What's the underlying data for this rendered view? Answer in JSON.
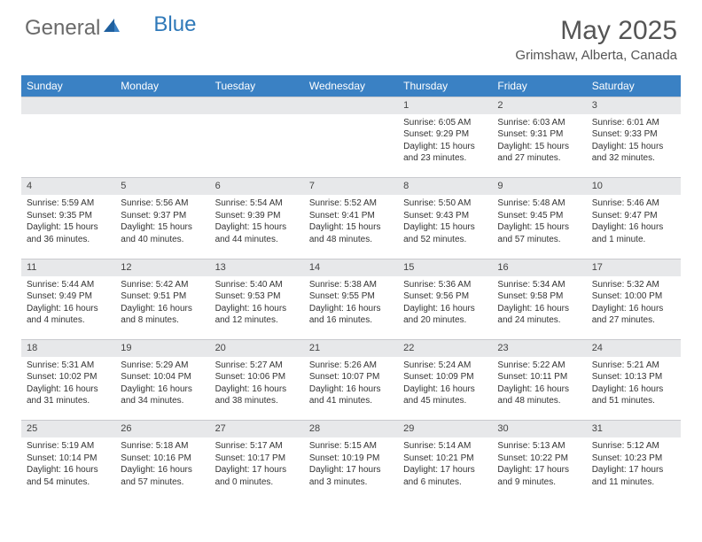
{
  "brand": {
    "part1": "General",
    "part2": "Blue"
  },
  "title": "May 2025",
  "location": "Grimshaw, Alberta, Canada",
  "colors": {
    "header_bg": "#3a81c4",
    "header_text": "#ffffff",
    "daynum_bg": "#e7e8ea",
    "text": "#333333",
    "brand_gray": "#6a6a6a",
    "brand_blue": "#2f79b9"
  },
  "daysOfWeek": [
    "Sunday",
    "Monday",
    "Tuesday",
    "Wednesday",
    "Thursday",
    "Friday",
    "Saturday"
  ],
  "weeks": [
    {
      "nums": [
        "",
        "",
        "",
        "",
        "1",
        "2",
        "3"
      ],
      "cells": [
        [
          "",
          "",
          "",
          ""
        ],
        [
          "",
          "",
          "",
          ""
        ],
        [
          "",
          "",
          "",
          ""
        ],
        [
          "",
          "",
          "",
          ""
        ],
        [
          "Sunrise: 6:05 AM",
          "Sunset: 9:29 PM",
          "Daylight: 15 hours",
          "and 23 minutes."
        ],
        [
          "Sunrise: 6:03 AM",
          "Sunset: 9:31 PM",
          "Daylight: 15 hours",
          "and 27 minutes."
        ],
        [
          "Sunrise: 6:01 AM",
          "Sunset: 9:33 PM",
          "Daylight: 15 hours",
          "and 32 minutes."
        ]
      ]
    },
    {
      "nums": [
        "4",
        "5",
        "6",
        "7",
        "8",
        "9",
        "10"
      ],
      "cells": [
        [
          "Sunrise: 5:59 AM",
          "Sunset: 9:35 PM",
          "Daylight: 15 hours",
          "and 36 minutes."
        ],
        [
          "Sunrise: 5:56 AM",
          "Sunset: 9:37 PM",
          "Daylight: 15 hours",
          "and 40 minutes."
        ],
        [
          "Sunrise: 5:54 AM",
          "Sunset: 9:39 PM",
          "Daylight: 15 hours",
          "and 44 minutes."
        ],
        [
          "Sunrise: 5:52 AM",
          "Sunset: 9:41 PM",
          "Daylight: 15 hours",
          "and 48 minutes."
        ],
        [
          "Sunrise: 5:50 AM",
          "Sunset: 9:43 PM",
          "Daylight: 15 hours",
          "and 52 minutes."
        ],
        [
          "Sunrise: 5:48 AM",
          "Sunset: 9:45 PM",
          "Daylight: 15 hours",
          "and 57 minutes."
        ],
        [
          "Sunrise: 5:46 AM",
          "Sunset: 9:47 PM",
          "Daylight: 16 hours",
          "and 1 minute."
        ]
      ]
    },
    {
      "nums": [
        "11",
        "12",
        "13",
        "14",
        "15",
        "16",
        "17"
      ],
      "cells": [
        [
          "Sunrise: 5:44 AM",
          "Sunset: 9:49 PM",
          "Daylight: 16 hours",
          "and 4 minutes."
        ],
        [
          "Sunrise: 5:42 AM",
          "Sunset: 9:51 PM",
          "Daylight: 16 hours",
          "and 8 minutes."
        ],
        [
          "Sunrise: 5:40 AM",
          "Sunset: 9:53 PM",
          "Daylight: 16 hours",
          "and 12 minutes."
        ],
        [
          "Sunrise: 5:38 AM",
          "Sunset: 9:55 PM",
          "Daylight: 16 hours",
          "and 16 minutes."
        ],
        [
          "Sunrise: 5:36 AM",
          "Sunset: 9:56 PM",
          "Daylight: 16 hours",
          "and 20 minutes."
        ],
        [
          "Sunrise: 5:34 AM",
          "Sunset: 9:58 PM",
          "Daylight: 16 hours",
          "and 24 minutes."
        ],
        [
          "Sunrise: 5:32 AM",
          "Sunset: 10:00 PM",
          "Daylight: 16 hours",
          "and 27 minutes."
        ]
      ]
    },
    {
      "nums": [
        "18",
        "19",
        "20",
        "21",
        "22",
        "23",
        "24"
      ],
      "cells": [
        [
          "Sunrise: 5:31 AM",
          "Sunset: 10:02 PM",
          "Daylight: 16 hours",
          "and 31 minutes."
        ],
        [
          "Sunrise: 5:29 AM",
          "Sunset: 10:04 PM",
          "Daylight: 16 hours",
          "and 34 minutes."
        ],
        [
          "Sunrise: 5:27 AM",
          "Sunset: 10:06 PM",
          "Daylight: 16 hours",
          "and 38 minutes."
        ],
        [
          "Sunrise: 5:26 AM",
          "Sunset: 10:07 PM",
          "Daylight: 16 hours",
          "and 41 minutes."
        ],
        [
          "Sunrise: 5:24 AM",
          "Sunset: 10:09 PM",
          "Daylight: 16 hours",
          "and 45 minutes."
        ],
        [
          "Sunrise: 5:22 AM",
          "Sunset: 10:11 PM",
          "Daylight: 16 hours",
          "and 48 minutes."
        ],
        [
          "Sunrise: 5:21 AM",
          "Sunset: 10:13 PM",
          "Daylight: 16 hours",
          "and 51 minutes."
        ]
      ]
    },
    {
      "nums": [
        "25",
        "26",
        "27",
        "28",
        "29",
        "30",
        "31"
      ],
      "cells": [
        [
          "Sunrise: 5:19 AM",
          "Sunset: 10:14 PM",
          "Daylight: 16 hours",
          "and 54 minutes."
        ],
        [
          "Sunrise: 5:18 AM",
          "Sunset: 10:16 PM",
          "Daylight: 16 hours",
          "and 57 minutes."
        ],
        [
          "Sunrise: 5:17 AM",
          "Sunset: 10:17 PM",
          "Daylight: 17 hours",
          "and 0 minutes."
        ],
        [
          "Sunrise: 5:15 AM",
          "Sunset: 10:19 PM",
          "Daylight: 17 hours",
          "and 3 minutes."
        ],
        [
          "Sunrise: 5:14 AM",
          "Sunset: 10:21 PM",
          "Daylight: 17 hours",
          "and 6 minutes."
        ],
        [
          "Sunrise: 5:13 AM",
          "Sunset: 10:22 PM",
          "Daylight: 17 hours",
          "and 9 minutes."
        ],
        [
          "Sunrise: 5:12 AM",
          "Sunset: 10:23 PM",
          "Daylight: 17 hours",
          "and 11 minutes."
        ]
      ]
    }
  ]
}
